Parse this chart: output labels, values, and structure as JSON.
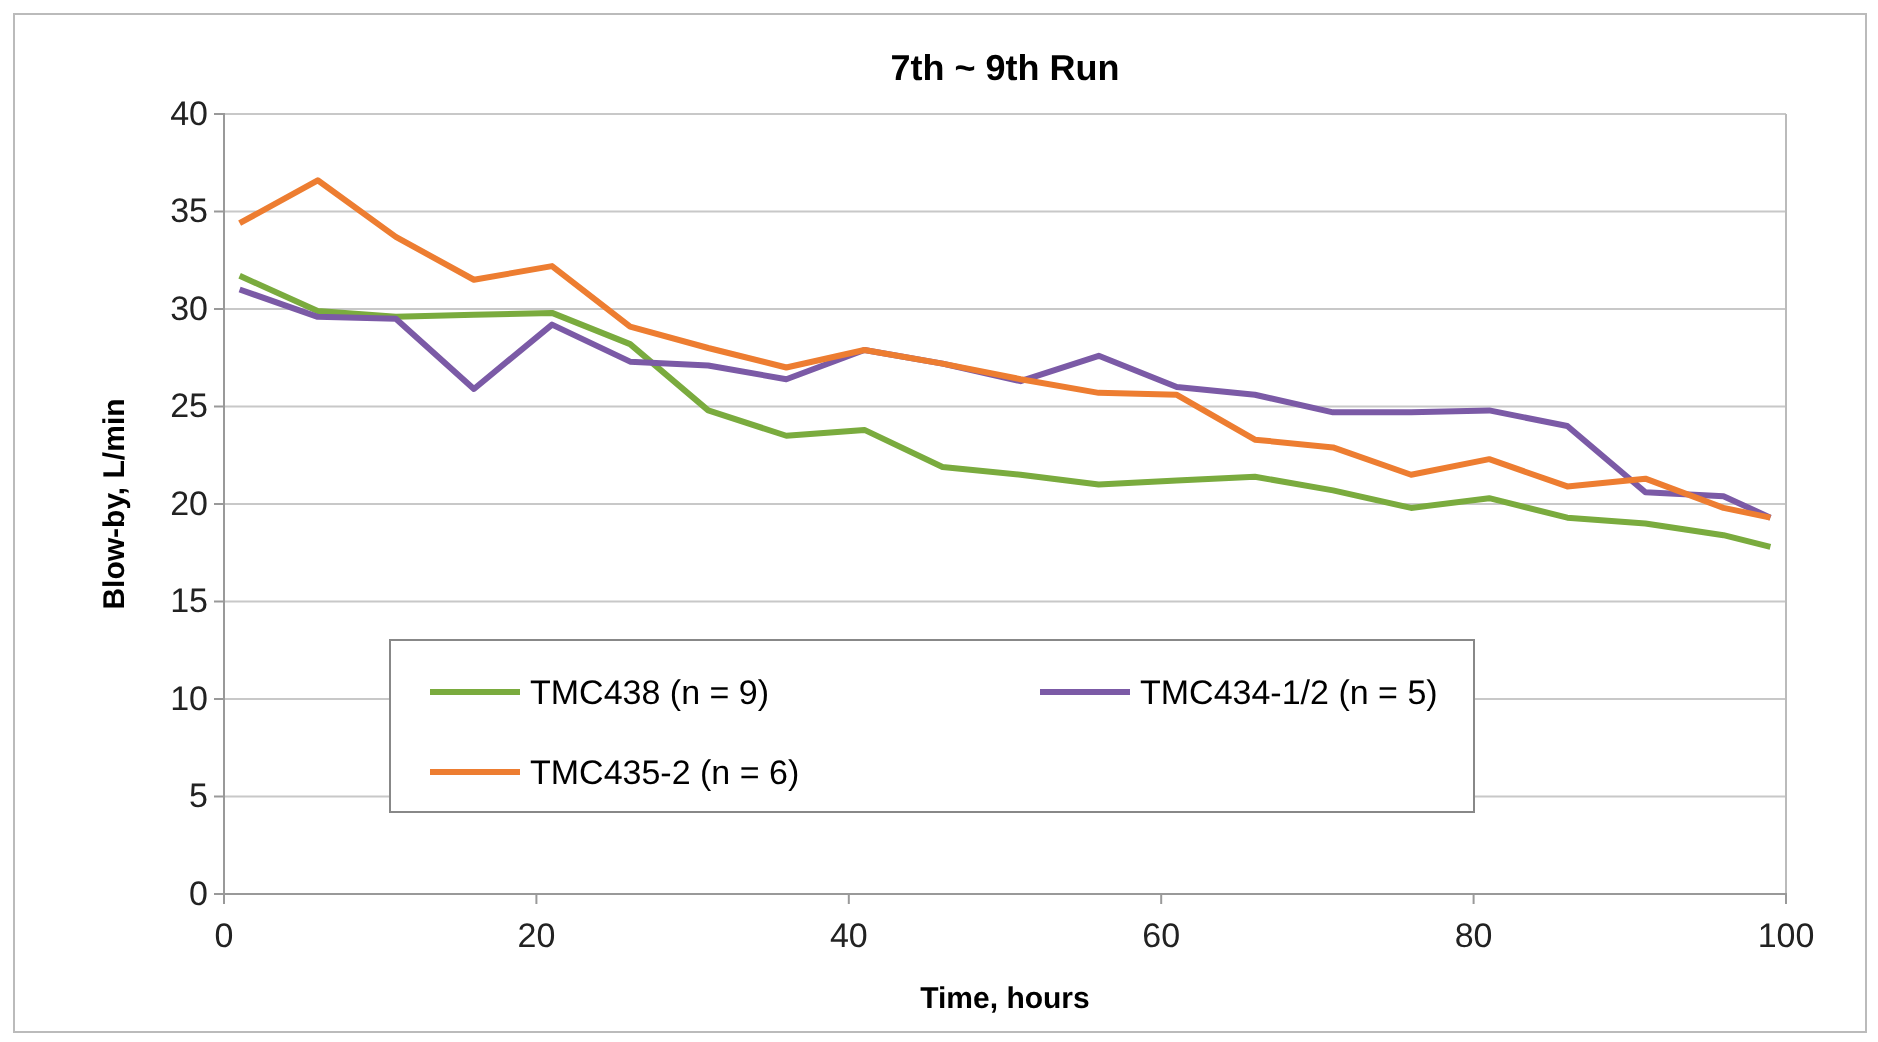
{
  "chart_data": {
    "type": "line",
    "title": "7th ~ 9th Run",
    "xlabel": "Time, hours",
    "ylabel": "Blow-by, L/min",
    "x": [
      1,
      6,
      11,
      16,
      21,
      26,
      31,
      36,
      41,
      46,
      51,
      56,
      61,
      66,
      71,
      76,
      81,
      86,
      91,
      96,
      99
    ],
    "xlim": [
      0,
      100
    ],
    "xticks": [
      0,
      20,
      40,
      60,
      80,
      100
    ],
    "ylim": [
      0,
      40
    ],
    "yticks": [
      0,
      5,
      10,
      15,
      20,
      25,
      30,
      35,
      40
    ],
    "grid": "y",
    "legend": "bottom left",
    "marker": "none",
    "line_style": "solid",
    "series": [
      {
        "name": "TMC438 (n = 9)",
        "color": "#7aab3e",
        "values": [
          31.7,
          29.9,
          29.6,
          29.7,
          29.8,
          28.2,
          24.8,
          23.5,
          23.8,
          21.9,
          21.5,
          21.0,
          21.2,
          21.4,
          20.7,
          19.8,
          20.3,
          19.3,
          19.0,
          18.4,
          17.8
        ]
      },
      {
        "name": "TMC434-1/2 (n = 5)",
        "color": "#7b5aa6",
        "values": [
          31.0,
          29.6,
          29.5,
          25.9,
          29.2,
          27.3,
          27.1,
          26.4,
          27.9,
          27.2,
          26.3,
          27.6,
          26.0,
          25.6,
          24.7,
          24.7,
          24.8,
          24.0,
          20.6,
          20.4,
          19.3
        ]
      },
      {
        "name": "TMC435-2 (n = 6)",
        "color": "#ed7d31",
        "values": [
          34.4,
          36.6,
          33.7,
          31.5,
          32.2,
          29.1,
          28.0,
          27.0,
          27.9,
          27.2,
          26.4,
          25.7,
          25.6,
          23.3,
          22.9,
          21.5,
          22.3,
          20.9,
          21.3,
          19.8,
          19.3
        ]
      }
    ]
  }
}
